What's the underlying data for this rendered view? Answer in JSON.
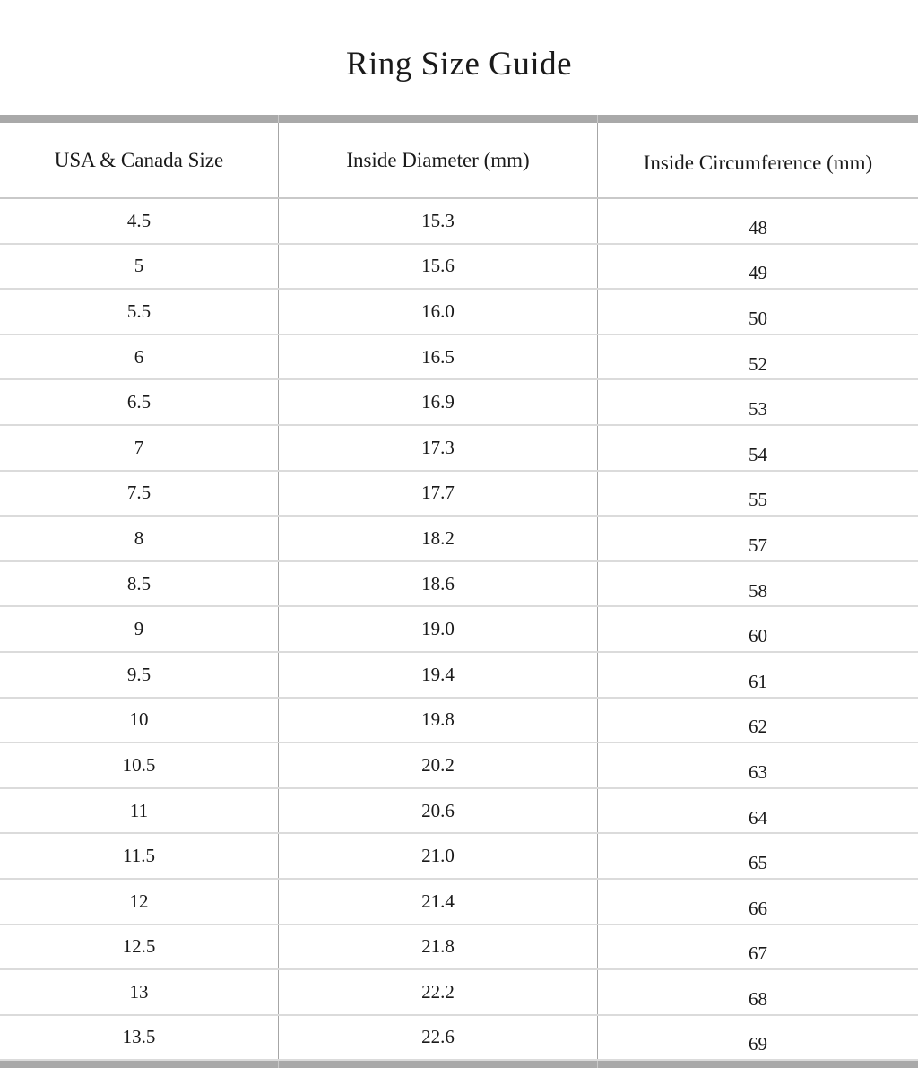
{
  "page": {
    "title": "Ring Size Guide"
  },
  "table": {
    "columns": [
      {
        "label": "USA & Canada Size"
      },
      {
        "label": "Inside Diameter (mm)"
      },
      {
        "label": "Inside Circumference (mm)"
      }
    ],
    "rows": [
      {
        "usa_size": "4.5",
        "diameter_mm": "15.3",
        "circumference_mm": "48"
      },
      {
        "usa_size": "5",
        "diameter_mm": "15.6",
        "circumference_mm": "49"
      },
      {
        "usa_size": "5.5",
        "diameter_mm": "16.0",
        "circumference_mm": "50"
      },
      {
        "usa_size": "6",
        "diameter_mm": "16.5",
        "circumference_mm": "52"
      },
      {
        "usa_size": "6.5",
        "diameter_mm": "16.9",
        "circumference_mm": "53"
      },
      {
        "usa_size": "7",
        "diameter_mm": "17.3",
        "circumference_mm": "54"
      },
      {
        "usa_size": "7.5",
        "diameter_mm": "17.7",
        "circumference_mm": "55"
      },
      {
        "usa_size": "8",
        "diameter_mm": "18.2",
        "circumference_mm": "57"
      },
      {
        "usa_size": "8.5",
        "diameter_mm": "18.6",
        "circumference_mm": "58"
      },
      {
        "usa_size": "9",
        "diameter_mm": "19.0",
        "circumference_mm": "60"
      },
      {
        "usa_size": "9.5",
        "diameter_mm": "19.4",
        "circumference_mm": "61"
      },
      {
        "usa_size": "10",
        "diameter_mm": "19.8",
        "circumference_mm": "62"
      },
      {
        "usa_size": "10.5",
        "diameter_mm": "20.2",
        "circumference_mm": "63"
      },
      {
        "usa_size": "11",
        "diameter_mm": "20.6",
        "circumference_mm": "64"
      },
      {
        "usa_size": "11.5",
        "diameter_mm": "21.0",
        "circumference_mm": "65"
      },
      {
        "usa_size": "12",
        "diameter_mm": "21.4",
        "circumference_mm": "66"
      },
      {
        "usa_size": "12.5",
        "diameter_mm": "21.8",
        "circumference_mm": "67"
      },
      {
        "usa_size": "13",
        "diameter_mm": "22.2",
        "circumference_mm": "68"
      },
      {
        "usa_size": "13.5",
        "diameter_mm": "22.6",
        "circumference_mm": "69"
      }
    ]
  },
  "colors": {
    "accent_bar": "#a9a9a9",
    "text": "#1a1a1a",
    "row_border": "#dbdbdb",
    "column_border": "#a6a6a6"
  }
}
